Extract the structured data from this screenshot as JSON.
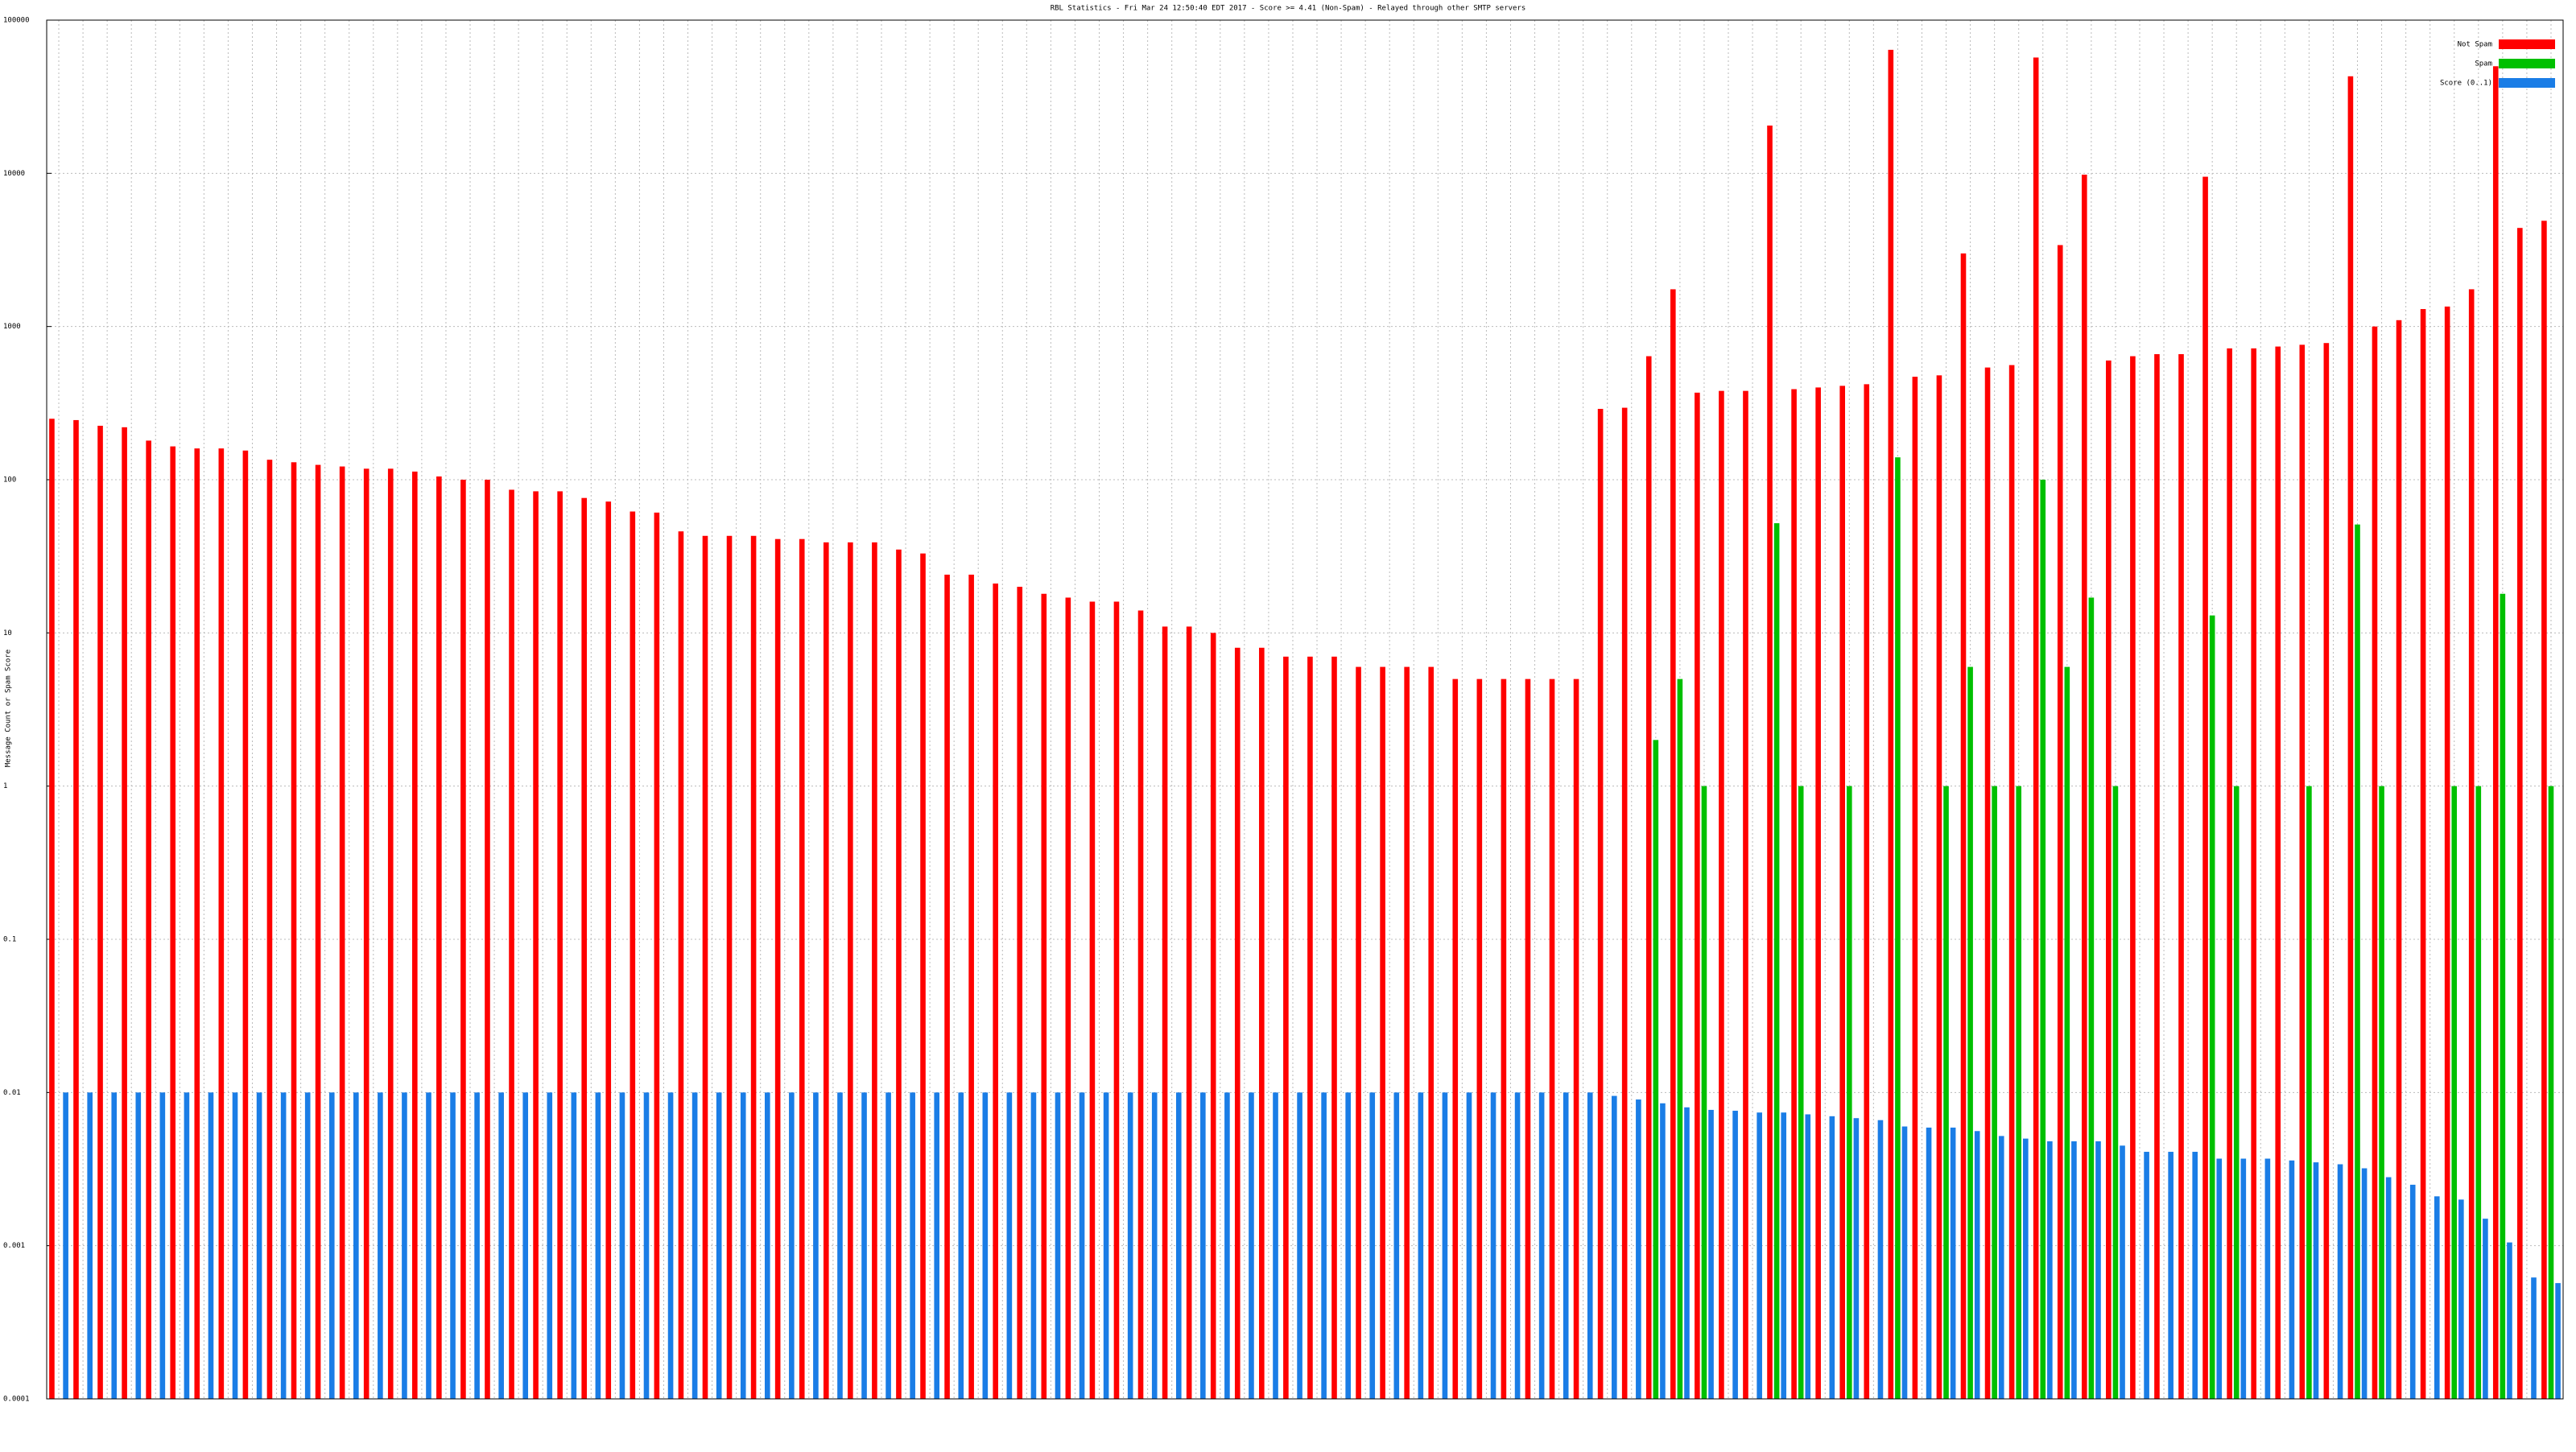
{
  "chart_data": {
    "type": "bar",
    "title": "RBL Statistics - Fri Mar 24 12:50:40 EDT 2017 - Score >= 4.41 (Non-Spam) - Relayed through other SMTP servers",
    "y_label": "Message Count or Spam Score",
    "log_scale": true,
    "grid": true,
    "legend": "top-right",
    "ylim": [
      0.0001,
      100000
    ],
    "yticks": [
      0.0001,
      0.001,
      0.01,
      0.1,
      1,
      10,
      100,
      1000,
      10000,
      100000
    ],
    "categories": [
      null,
      null,
      null,
      null,
      null,
      null,
      null,
      null,
      null,
      null,
      null,
      null,
      null,
      null,
      null,
      null,
      null,
      null,
      null,
      null,
      null,
      null,
      null,
      null,
      null,
      null,
      null,
      null,
      null,
      null,
      null,
      null,
      null,
      null,
      null,
      null,
      null,
      null,
      null,
      null,
      null,
      null,
      null,
      null,
      null,
      null,
      null,
      null,
      null,
      null,
      null,
      null,
      null,
      null,
      null,
      null,
      null,
      null,
      null,
      null,
      null,
      null,
      null,
      null,
      null,
      null,
      null,
      null,
      null,
      null,
      null,
      null,
      null,
      null,
      null,
      null,
      null,
      null,
      null,
      null,
      null,
      null,
      null,
      null,
      null,
      null,
      null,
      null,
      null,
      null,
      null,
      null,
      null,
      null,
      null,
      null,
      null,
      null,
      null,
      null,
      null,
      null,
      null,
      null
    ],
    "series": [
      {
        "name": "Not Spam",
        "color": "#ff0000",
        "values": [
          250,
          245,
          225,
          220,
          180,
          165,
          160,
          160,
          155,
          135,
          130,
          125,
          122,
          118,
          118,
          113,
          105,
          100,
          100,
          86,
          84,
          84,
          76,
          72,
          62,
          61,
          46,
          43,
          43,
          43,
          41,
          41,
          39,
          39,
          39,
          35,
          33,
          24,
          24,
          21,
          20,
          18,
          17,
          16,
          16,
          14,
          11,
          11,
          10,
          8,
          8,
          7,
          7,
          7,
          6,
          6,
          6,
          6,
          5,
          5,
          5,
          5,
          5,
          5,
          290,
          295,
          640,
          1750,
          370,
          380,
          380,
          20500,
          390,
          400,
          410,
          420,
          64000,
          470,
          480,
          3000,
          540,
          560,
          57000,
          3400,
          9800,
          600,
          640,
          660,
          660,
          9500,
          720,
          720,
          740,
          760,
          780,
          43000,
          1000,
          1100,
          1300,
          1350,
          1750,
          50000,
          4400,
          4900
        ]
      },
      {
        "name": "Spam",
        "color": "#00c000",
        "values": [
          null,
          null,
          null,
          null,
          null,
          null,
          null,
          null,
          null,
          null,
          null,
          null,
          null,
          null,
          null,
          null,
          null,
          null,
          null,
          null,
          null,
          null,
          null,
          null,
          null,
          null,
          null,
          null,
          null,
          null,
          null,
          null,
          null,
          null,
          null,
          null,
          null,
          null,
          null,
          null,
          null,
          null,
          null,
          null,
          null,
          null,
          null,
          null,
          null,
          null,
          null,
          null,
          null,
          null,
          null,
          null,
          null,
          null,
          null,
          null,
          null,
          null,
          null,
          null,
          null,
          null,
          2,
          5,
          1,
          null,
          null,
          52,
          1,
          null,
          1,
          null,
          140,
          null,
          1,
          6,
          1,
          1,
          100,
          6,
          17,
          1,
          null,
          null,
          null,
          13,
          1,
          null,
          null,
          1,
          null,
          51,
          1,
          null,
          null,
          1,
          1,
          18,
          null,
          1
        ]
      },
      {
        "name": "Score (0..1)",
        "color": "#1a7de6",
        "values": [
          0.01,
          0.01,
          0.01,
          0.01,
          0.01,
          0.01,
          0.01,
          0.01,
          0.01,
          0.01,
          0.01,
          0.01,
          0.01,
          0.01,
          0.01,
          0.01,
          0.01,
          0.01,
          0.01,
          0.01,
          0.01,
          0.01,
          0.01,
          0.01,
          0.01,
          0.01,
          0.01,
          0.01,
          0.01,
          0.01,
          0.01,
          0.01,
          0.01,
          0.01,
          0.01,
          0.01,
          0.01,
          0.01,
          0.01,
          0.01,
          0.01,
          0.01,
          0.01,
          0.01,
          0.01,
          0.01,
          0.01,
          0.01,
          0.01,
          0.01,
          0.01,
          0.01,
          0.01,
          0.01,
          0.01,
          0.01,
          0.01,
          0.01,
          0.01,
          0.01,
          0.01,
          0.01,
          0.01,
          0.01,
          0.0095,
          0.009,
          0.0085,
          0.008,
          0.0077,
          0.0076,
          0.0074,
          0.0074,
          0.0072,
          0.007,
          0.0068,
          0.0066,
          0.006,
          0.0059,
          0.0059,
          0.0056,
          0.0052,
          0.005,
          0.0048,
          0.0048,
          0.0048,
          0.0045,
          0.0041,
          0.0041,
          0.0041,
          0.0037,
          0.0037,
          0.0037,
          0.0036,
          0.0035,
          0.0034,
          0.0032,
          0.0028,
          0.0025,
          0.0021,
          0.002,
          0.0015,
          0.00105,
          0.00062,
          0.00057
        ]
      }
    ]
  }
}
